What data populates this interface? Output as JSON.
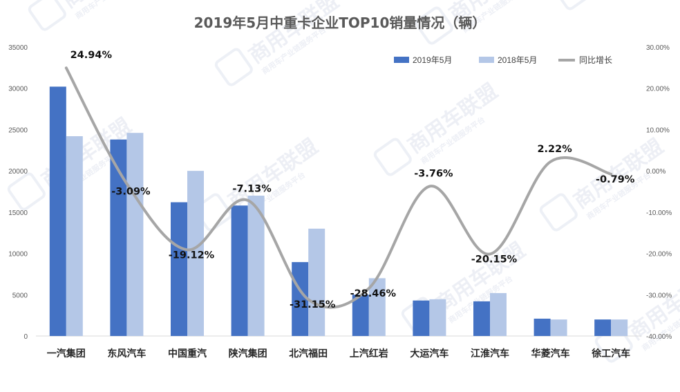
{
  "chart_data": {
    "type": "bar",
    "title": "2019年5月中重卡企业TOP10销量情况（辆）",
    "categories": [
      "一汽集团",
      "东风汽车",
      "中国重汽",
      "陕汽集团",
      "北汽福田",
      "上汽红岩",
      "大运汽车",
      "江淮汽车",
      "华菱汽车",
      "徐工汽车"
    ],
    "series": [
      {
        "name": "2019年5月",
        "type": "bar",
        "axis": "left",
        "color": "#4472c4",
        "values": [
          30200,
          23800,
          16200,
          15800,
          8950,
          5000,
          4300,
          4200,
          2100,
          2000
        ]
      },
      {
        "name": "2018年5月",
        "type": "bar",
        "axis": "left",
        "color": "#b4c7e7",
        "values": [
          24200,
          24600,
          20000,
          17000,
          13000,
          7000,
          4450,
          5200,
          2000,
          2000
        ]
      },
      {
        "name": "同比增长",
        "type": "line",
        "axis": "right",
        "color": "#a6a6a6",
        "values": [
          24.94,
          -3.09,
          -19.12,
          -7.13,
          -31.15,
          -28.46,
          -3.76,
          -20.15,
          2.22,
          -0.79
        ],
        "labels": [
          "24.94%",
          "-3.09%",
          "-19.12%",
          "-7.13%",
          "-31.15%",
          "-28.46%",
          "-3.76%",
          "-20.15%",
          "2.22%",
          "-0.79%"
        ]
      }
    ],
    "y_left": {
      "min": 0,
      "max": 35000,
      "ticks": [
        "0",
        "5000",
        "10000",
        "15000",
        "20000",
        "25000",
        "30000",
        "35000"
      ]
    },
    "y_right": {
      "min": -40,
      "max": 30,
      "ticks": [
        "-40.00%",
        "-30.00%",
        "-20.00%",
        "-10.00%",
        "0.00%",
        "10.00%",
        "20.00%",
        "30.00%"
      ]
    },
    "legend": {
      "position": "top-right"
    },
    "grid": false
  },
  "watermark": {
    "brand": "商用车联盟",
    "tagline": "商用车产业链服务平台"
  }
}
